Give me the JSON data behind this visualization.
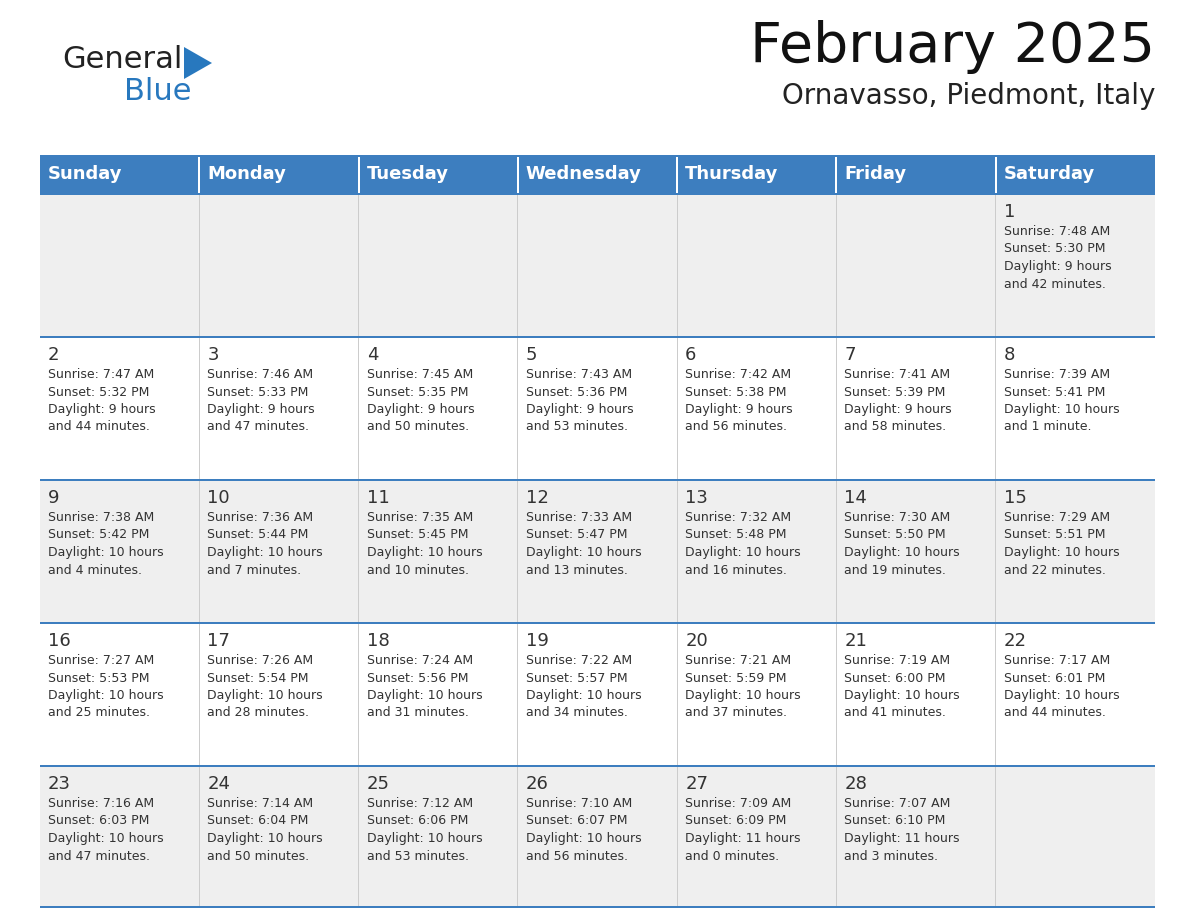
{
  "title": "February 2025",
  "subtitle": "Ornavasso, Piedmont, Italy",
  "header_color": "#3D7EBF",
  "header_text_color": "#FFFFFF",
  "cell_bg_week1": "#EFEFEF",
  "cell_bg_week2": "#FFFFFF",
  "cell_bg_week3": "#EFEFEF",
  "cell_bg_week4": "#FFFFFF",
  "cell_bg_week5": "#EFEFEF",
  "separator_color": "#3D7EBF",
  "text_color": "#333333",
  "days_of_week": [
    "Sunday",
    "Monday",
    "Tuesday",
    "Wednesday",
    "Thursday",
    "Friday",
    "Saturday"
  ],
  "weeks": [
    [
      {
        "day": "",
        "info": ""
      },
      {
        "day": "",
        "info": ""
      },
      {
        "day": "",
        "info": ""
      },
      {
        "day": "",
        "info": ""
      },
      {
        "day": "",
        "info": ""
      },
      {
        "day": "",
        "info": ""
      },
      {
        "day": "1",
        "info": "Sunrise: 7:48 AM\nSunset: 5:30 PM\nDaylight: 9 hours\nand 42 minutes."
      }
    ],
    [
      {
        "day": "2",
        "info": "Sunrise: 7:47 AM\nSunset: 5:32 PM\nDaylight: 9 hours\nand 44 minutes."
      },
      {
        "day": "3",
        "info": "Sunrise: 7:46 AM\nSunset: 5:33 PM\nDaylight: 9 hours\nand 47 minutes."
      },
      {
        "day": "4",
        "info": "Sunrise: 7:45 AM\nSunset: 5:35 PM\nDaylight: 9 hours\nand 50 minutes."
      },
      {
        "day": "5",
        "info": "Sunrise: 7:43 AM\nSunset: 5:36 PM\nDaylight: 9 hours\nand 53 minutes."
      },
      {
        "day": "6",
        "info": "Sunrise: 7:42 AM\nSunset: 5:38 PM\nDaylight: 9 hours\nand 56 minutes."
      },
      {
        "day": "7",
        "info": "Sunrise: 7:41 AM\nSunset: 5:39 PM\nDaylight: 9 hours\nand 58 minutes."
      },
      {
        "day": "8",
        "info": "Sunrise: 7:39 AM\nSunset: 5:41 PM\nDaylight: 10 hours\nand 1 minute."
      }
    ],
    [
      {
        "day": "9",
        "info": "Sunrise: 7:38 AM\nSunset: 5:42 PM\nDaylight: 10 hours\nand 4 minutes."
      },
      {
        "day": "10",
        "info": "Sunrise: 7:36 AM\nSunset: 5:44 PM\nDaylight: 10 hours\nand 7 minutes."
      },
      {
        "day": "11",
        "info": "Sunrise: 7:35 AM\nSunset: 5:45 PM\nDaylight: 10 hours\nand 10 minutes."
      },
      {
        "day": "12",
        "info": "Sunrise: 7:33 AM\nSunset: 5:47 PM\nDaylight: 10 hours\nand 13 minutes."
      },
      {
        "day": "13",
        "info": "Sunrise: 7:32 AM\nSunset: 5:48 PM\nDaylight: 10 hours\nand 16 minutes."
      },
      {
        "day": "14",
        "info": "Sunrise: 7:30 AM\nSunset: 5:50 PM\nDaylight: 10 hours\nand 19 minutes."
      },
      {
        "day": "15",
        "info": "Sunrise: 7:29 AM\nSunset: 5:51 PM\nDaylight: 10 hours\nand 22 minutes."
      }
    ],
    [
      {
        "day": "16",
        "info": "Sunrise: 7:27 AM\nSunset: 5:53 PM\nDaylight: 10 hours\nand 25 minutes."
      },
      {
        "day": "17",
        "info": "Sunrise: 7:26 AM\nSunset: 5:54 PM\nDaylight: 10 hours\nand 28 minutes."
      },
      {
        "day": "18",
        "info": "Sunrise: 7:24 AM\nSunset: 5:56 PM\nDaylight: 10 hours\nand 31 minutes."
      },
      {
        "day": "19",
        "info": "Sunrise: 7:22 AM\nSunset: 5:57 PM\nDaylight: 10 hours\nand 34 minutes."
      },
      {
        "day": "20",
        "info": "Sunrise: 7:21 AM\nSunset: 5:59 PM\nDaylight: 10 hours\nand 37 minutes."
      },
      {
        "day": "21",
        "info": "Sunrise: 7:19 AM\nSunset: 6:00 PM\nDaylight: 10 hours\nand 41 minutes."
      },
      {
        "day": "22",
        "info": "Sunrise: 7:17 AM\nSunset: 6:01 PM\nDaylight: 10 hours\nand 44 minutes."
      }
    ],
    [
      {
        "day": "23",
        "info": "Sunrise: 7:16 AM\nSunset: 6:03 PM\nDaylight: 10 hours\nand 47 minutes."
      },
      {
        "day": "24",
        "info": "Sunrise: 7:14 AM\nSunset: 6:04 PM\nDaylight: 10 hours\nand 50 minutes."
      },
      {
        "day": "25",
        "info": "Sunrise: 7:12 AM\nSunset: 6:06 PM\nDaylight: 10 hours\nand 53 minutes."
      },
      {
        "day": "26",
        "info": "Sunrise: 7:10 AM\nSunset: 6:07 PM\nDaylight: 10 hours\nand 56 minutes."
      },
      {
        "day": "27",
        "info": "Sunrise: 7:09 AM\nSunset: 6:09 PM\nDaylight: 11 hours\nand 0 minutes."
      },
      {
        "day": "28",
        "info": "Sunrise: 7:07 AM\nSunset: 6:10 PM\nDaylight: 11 hours\nand 3 minutes."
      },
      {
        "day": "",
        "info": ""
      }
    ]
  ],
  "logo_text1": "General",
  "logo_text2": "Blue",
  "logo_color1": "#222222",
  "logo_color2": "#2878BE",
  "logo_triangle_color": "#2878BE",
  "title_fontsize": 40,
  "subtitle_fontsize": 20,
  "header_fontsize": 13,
  "day_num_fontsize": 13,
  "info_fontsize": 9
}
